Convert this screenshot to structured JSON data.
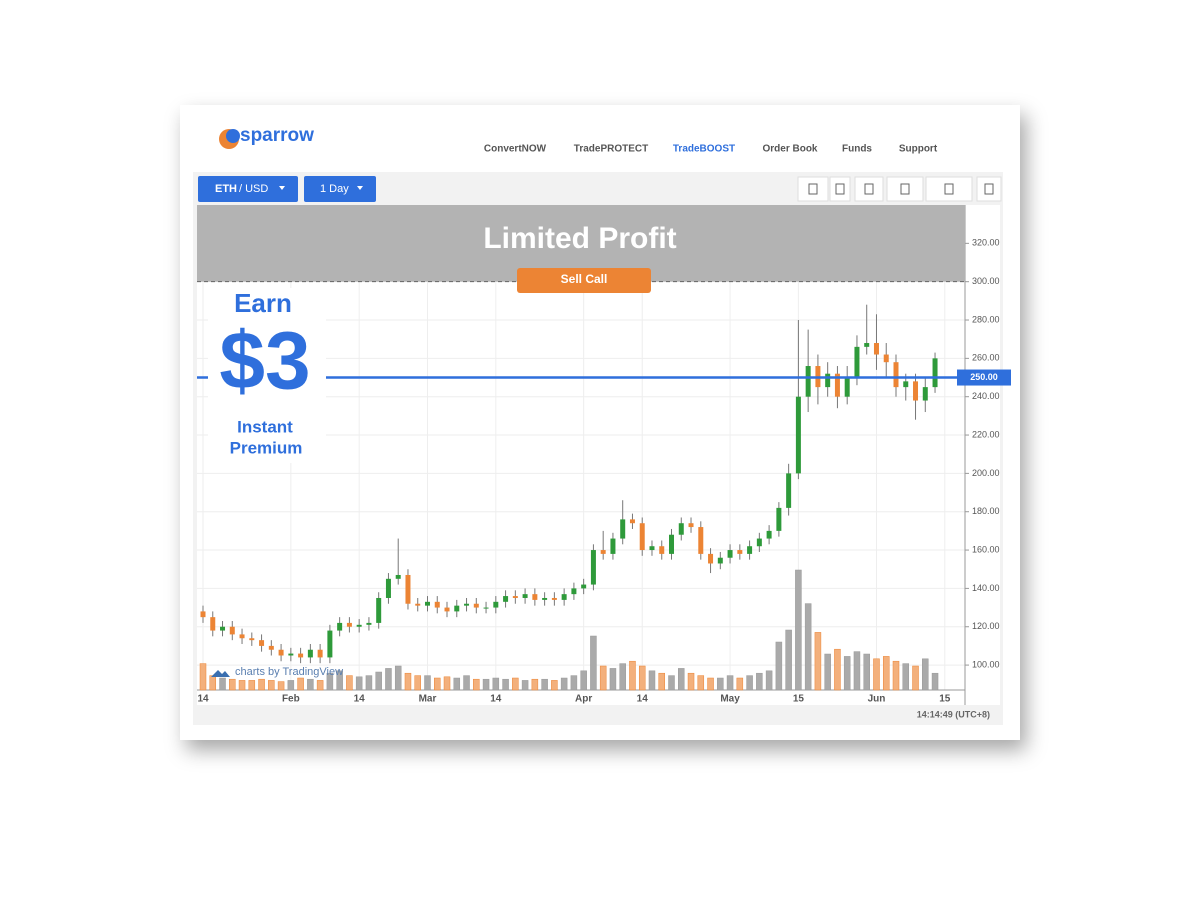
{
  "header": {
    "logo": "sparrow",
    "nav": [
      {
        "label": "ConvertNOW",
        "active": false
      },
      {
        "label": "TradePROTECT",
        "active": false
      },
      {
        "label": "TradeBOOST",
        "active": true
      },
      {
        "label": "Order Book",
        "active": false
      },
      {
        "label": "Funds",
        "active": false
      },
      {
        "label": "Support",
        "active": false
      }
    ]
  },
  "toolbar": {
    "symbol": "ETH",
    "quote": "/ USD",
    "interval": "1 Day"
  },
  "promo": {
    "earn": "Earn",
    "amount": "$3",
    "caption_1": "Instant",
    "caption_2": "Premium"
  },
  "watermark": "charts by TradingView",
  "time": "14:14:49 (UTC+8)",
  "chart_data": {
    "type": "candlestick",
    "categories": [
      "14",
      null,
      null,
      null,
      null,
      null,
      null,
      null,
      null,
      "Feb",
      null,
      null,
      null,
      null,
      null,
      null,
      "14",
      null,
      null,
      null,
      null,
      null,
      null,
      "Mar",
      null,
      null,
      null,
      null,
      null,
      null,
      "14",
      null,
      null,
      null,
      null,
      null,
      null,
      null,
      null,
      "Apr",
      null,
      null,
      null,
      null,
      null,
      "14",
      null,
      null,
      null,
      null,
      null,
      null,
      null,
      null,
      "May",
      null,
      null,
      null,
      null,
      null,
      null,
      "15",
      null,
      null,
      null,
      null,
      null,
      null,
      null,
      "Jun",
      null,
      null,
      null,
      null,
      null,
      null,
      "15"
    ],
    "open": [
      128,
      125,
      118,
      120,
      116,
      114,
      113,
      110,
      108,
      105,
      106,
      104,
      108,
      104,
      118,
      122,
      120,
      121,
      122,
      135,
      145,
      147,
      132,
      131,
      133,
      130,
      128,
      131,
      132,
      130,
      130,
      133,
      136,
      135,
      137,
      134,
      135,
      134,
      137,
      140,
      142,
      160,
      158,
      166,
      176,
      174,
      160,
      162,
      158,
      168,
      174,
      172,
      158,
      153,
      156,
      160,
      158,
      162,
      166,
      170,
      182,
      200,
      240,
      256,
      245,
      252,
      240,
      250,
      266,
      268,
      262,
      258,
      245,
      248,
      238,
      245,
      null
    ],
    "high": [
      131,
      128,
      123,
      123,
      119,
      117,
      116,
      113,
      111,
      109,
      109,
      111,
      111,
      121,
      125,
      125,
      124,
      125,
      138,
      148,
      166,
      150,
      135,
      136,
      136,
      133,
      134,
      135,
      135,
      133,
      136,
      139,
      139,
      140,
      140,
      138,
      138,
      140,
      143,
      145,
      163,
      170,
      169,
      186,
      179,
      177,
      165,
      165,
      171,
      177,
      177,
      175,
      161,
      159,
      163,
      163,
      165,
      169,
      173,
      185,
      205,
      280,
      275,
      262,
      258,
      256,
      256,
      272,
      288,
      283,
      268,
      262,
      252,
      252,
      250,
      263,
      null
    ],
    "low": [
      122,
      115,
      115,
      113,
      111,
      110,
      107,
      105,
      102,
      102,
      101,
      101,
      101,
      101,
      115,
      117,
      117,
      118,
      119,
      132,
      142,
      129,
      128,
      128,
      127,
      125,
      125,
      128,
      127,
      127,
      127,
      130,
      132,
      132,
      131,
      131,
      131,
      131,
      134,
      137,
      139,
      155,
      155,
      163,
      171,
      157,
      157,
      155,
      155,
      165,
      169,
      155,
      148,
      150,
      153,
      155,
      155,
      159,
      163,
      167,
      178,
      197,
      232,
      236,
      240,
      234,
      236,
      246,
      262,
      254,
      250,
      240,
      238,
      228,
      232,
      242,
      null
    ],
    "close": [
      125,
      118,
      120,
      116,
      114,
      113,
      110,
      108,
      105,
      106,
      104,
      108,
      104,
      118,
      122,
      120,
      121,
      122,
      135,
      145,
      147,
      132,
      131,
      133,
      130,
      128,
      131,
      132,
      130,
      130,
      133,
      136,
      135,
      137,
      134,
      135,
      134,
      137,
      140,
      142,
      160,
      158,
      166,
      176,
      174,
      160,
      162,
      158,
      168,
      174,
      172,
      158,
      153,
      156,
      160,
      158,
      162,
      166,
      170,
      182,
      200,
      240,
      256,
      245,
      252,
      240,
      250,
      266,
      268,
      262,
      258,
      245,
      248,
      238,
      245,
      260,
      null
    ],
    "volume": [
      22,
      12,
      10,
      9,
      8,
      8,
      9,
      8,
      7,
      8,
      10,
      9,
      8,
      14,
      16,
      12,
      11,
      12,
      15,
      18,
      20,
      14,
      12,
      12,
      10,
      11,
      10,
      12,
      9,
      9,
      10,
      9,
      10,
      8,
      9,
      9,
      8,
      10,
      12,
      16,
      45,
      20,
      18,
      22,
      24,
      20,
      16,
      14,
      12,
      18,
      14,
      12,
      10,
      10,
      12,
      10,
      12,
      14,
      16,
      40,
      50,
      100,
      72,
      48,
      30,
      34,
      28,
      32,
      30,
      26,
      28,
      24,
      22,
      20,
      26,
      14,
      null
    ],
    "up_color": "#2e9a3a",
    "down_color": "#ec8434",
    "volume_up_color": "#aaaaaa",
    "volume_down_color": "#f3b07c",
    "ylim": [
      87,
      340
    ],
    "yticks": [
      {
        "value": 100,
        "label": "100.00"
      },
      {
        "value": 120,
        "label": "120.00"
      },
      {
        "value": 140,
        "label": "140.00"
      },
      {
        "value": 160,
        "label": "160.00"
      },
      {
        "value": 180,
        "label": "180.00"
      },
      {
        "value": 200,
        "label": "200.00"
      },
      {
        "value": 220,
        "label": "220.00"
      },
      {
        "value": 240,
        "label": "240.00"
      },
      {
        "value": 260,
        "label": "260.00"
      },
      {
        "value": 280,
        "label": "280.00"
      },
      {
        "value": 300,
        "label": "300.00"
      },
      {
        "value": 320,
        "label": "320.00"
      }
    ],
    "grid": true,
    "strike": {
      "value": 250,
      "label": "250.00",
      "color": "#2f6fdc"
    },
    "limit_zone": {
      "from": 300,
      "title": "Limited Profit",
      "button": "Sell Call",
      "color": "#b3b3b3"
    }
  }
}
